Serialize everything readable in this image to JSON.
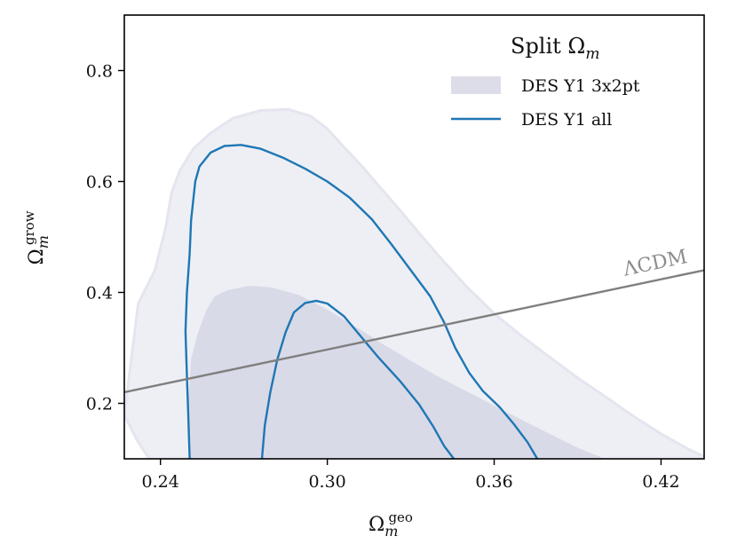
{
  "chart_data": {
    "type": "contour",
    "xlabel_base": "Ω",
    "xlabel_sub": "m",
    "xlabel_sup": "geo",
    "ylabel_base": "Ω",
    "ylabel_sub": "m",
    "ylabel_sup": "grow",
    "xlim": [
      0.227,
      0.4355
    ],
    "ylim": [
      0.1,
      0.9
    ],
    "xticks": [
      0.24,
      0.3,
      0.36,
      0.42
    ],
    "xtick_labels": [
      "0.24",
      "0.30",
      "0.36",
      "0.42"
    ],
    "yticks": [
      0.2,
      0.4,
      0.6,
      0.8
    ],
    "ytick_labels": [
      "0.2",
      "0.4",
      "0.6",
      "0.8"
    ],
    "legend": {
      "title": "Split Ω",
      "title_sub": "m",
      "position": "top-right",
      "entries": [
        {
          "label": "DES Y1 3x2pt",
          "style": "fill",
          "color": "#dcdde9"
        },
        {
          "label": "DES Y1 all",
          "style": "line",
          "color": "#1f77b4"
        }
      ]
    },
    "series": [
      {
        "name": "DES Y1 3x2pt 95%",
        "kind": "fill",
        "color": "#eeeff5",
        "edge": "#e4e5ee",
        "points": [
          [
            0.227,
            0.178
          ],
          [
            0.23,
            0.3
          ],
          [
            0.232,
            0.38
          ],
          [
            0.238,
            0.44
          ],
          [
            0.242,
            0.52
          ],
          [
            0.244,
            0.58
          ],
          [
            0.247,
            0.62
          ],
          [
            0.252,
            0.66
          ],
          [
            0.258,
            0.687
          ],
          [
            0.266,
            0.714
          ],
          [
            0.276,
            0.728
          ],
          [
            0.286,
            0.73
          ],
          [
            0.294,
            0.718
          ],
          [
            0.3,
            0.695
          ],
          [
            0.306,
            0.662
          ],
          [
            0.312,
            0.63
          ],
          [
            0.318,
            0.595
          ],
          [
            0.326,
            0.549
          ],
          [
            0.334,
            0.501
          ],
          [
            0.342,
            0.455
          ],
          [
            0.35,
            0.411
          ],
          [
            0.36,
            0.362
          ],
          [
            0.37,
            0.321
          ],
          [
            0.38,
            0.283
          ],
          [
            0.39,
            0.246
          ],
          [
            0.4,
            0.212
          ],
          [
            0.41,
            0.177
          ],
          [
            0.42,
            0.145
          ],
          [
            0.43,
            0.117
          ],
          [
            0.4355,
            0.104
          ],
          [
            0.4355,
            0.1
          ],
          [
            0.236,
            0.1
          ],
          [
            0.232,
            0.13
          ]
        ]
      },
      {
        "name": "DES Y1 3x2pt 68%",
        "kind": "fill",
        "color": "#d9dae8",
        "points": [
          [
            0.2505,
            0.1
          ],
          [
            0.25,
            0.14
          ],
          [
            0.25,
            0.2
          ],
          [
            0.251,
            0.28
          ],
          [
            0.2535,
            0.328
          ],
          [
            0.2565,
            0.368
          ],
          [
            0.2595,
            0.393
          ],
          [
            0.264,
            0.404
          ],
          [
            0.272,
            0.412
          ],
          [
            0.28,
            0.409
          ],
          [
            0.29,
            0.395
          ],
          [
            0.3,
            0.369
          ],
          [
            0.31,
            0.339
          ],
          [
            0.32,
            0.307
          ],
          [
            0.33,
            0.277
          ],
          [
            0.34,
            0.248
          ],
          [
            0.35,
            0.222
          ],
          [
            0.36,
            0.196
          ],
          [
            0.37,
            0.17
          ],
          [
            0.38,
            0.145
          ],
          [
            0.39,
            0.12
          ],
          [
            0.398,
            0.104
          ],
          [
            0.399,
            0.1
          ]
        ]
      },
      {
        "name": "DES Y1 all 95%",
        "kind": "line",
        "color": "#1f77b4",
        "points": [
          [
            0.2505,
            0.1
          ],
          [
            0.25,
            0.18
          ],
          [
            0.2495,
            0.25
          ],
          [
            0.249,
            0.33
          ],
          [
            0.2495,
            0.4
          ],
          [
            0.2505,
            0.47
          ],
          [
            0.251,
            0.53
          ],
          [
            0.2525,
            0.6
          ],
          [
            0.254,
            0.627
          ],
          [
            0.258,
            0.652
          ],
          [
            0.263,
            0.664
          ],
          [
            0.269,
            0.666
          ],
          [
            0.276,
            0.659
          ],
          [
            0.284,
            0.643
          ],
          [
            0.292,
            0.623
          ],
          [
            0.3,
            0.6
          ],
          [
            0.308,
            0.571
          ],
          [
            0.316,
            0.532
          ],
          [
            0.323,
            0.487
          ],
          [
            0.33,
            0.44
          ],
          [
            0.337,
            0.393
          ],
          [
            0.342,
            0.346
          ],
          [
            0.346,
            0.3
          ],
          [
            0.351,
            0.255
          ],
          [
            0.356,
            0.222
          ],
          [
            0.362,
            0.193
          ],
          [
            0.367,
            0.163
          ],
          [
            0.372,
            0.13
          ],
          [
            0.3755,
            0.1
          ]
        ]
      },
      {
        "name": "DES Y1 all 68%",
        "kind": "line",
        "color": "#1f77b4",
        "points": [
          [
            0.2765,
            0.1
          ],
          [
            0.2775,
            0.16
          ],
          [
            0.2795,
            0.22
          ],
          [
            0.282,
            0.279
          ],
          [
            0.285,
            0.328
          ],
          [
            0.288,
            0.364
          ],
          [
            0.292,
            0.381
          ],
          [
            0.296,
            0.385
          ],
          [
            0.3,
            0.38
          ],
          [
            0.306,
            0.357
          ],
          [
            0.312,
            0.321
          ],
          [
            0.318,
            0.285
          ],
          [
            0.326,
            0.241
          ],
          [
            0.333,
            0.198
          ],
          [
            0.338,
            0.159
          ],
          [
            0.342,
            0.123
          ],
          [
            0.3455,
            0.1
          ]
        ]
      },
      {
        "name": "ΛCDM",
        "kind": "line",
        "color": "#7f7f7f",
        "points": [
          [
            0.227,
            0.22
          ],
          [
            0.4355,
            0.44
          ]
        ]
      }
    ],
    "annotations": [
      {
        "text": "ΛCDM",
        "x": 0.407,
        "y": 0.43,
        "angle_data_slope": true
      }
    ]
  }
}
